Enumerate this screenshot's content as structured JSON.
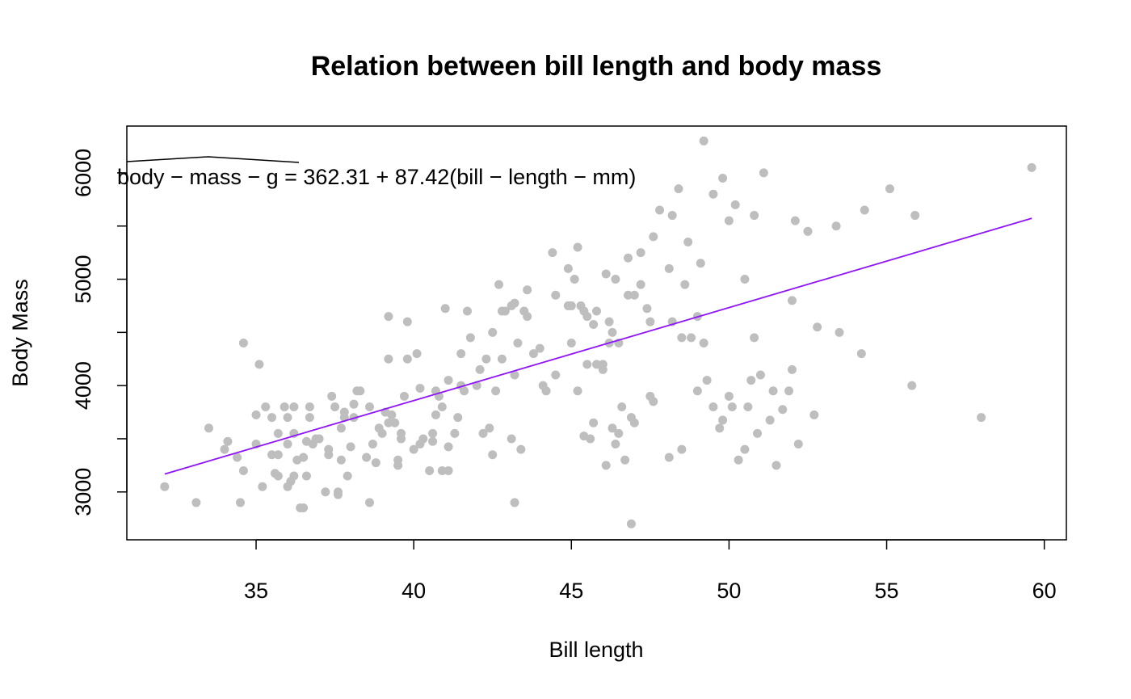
{
  "chart_data": {
    "type": "scatter",
    "title": "Relation between bill length and body mass",
    "xlabel": "Bill length",
    "ylabel": "Body Mass",
    "xlim": [
      30.9,
      60.7
    ],
    "ylim": [
      2550,
      6440
    ],
    "x_ticks": [
      35,
      40,
      45,
      50,
      55,
      60
    ],
    "y_ticks": [
      3000,
      4000,
      5000,
      6000
    ],
    "y_minor_ticks": [
      3500,
      4500,
      5500
    ],
    "grid": false,
    "equation": "body − mass − g = 362.31 + 87.42(bill − length − mm)",
    "fit_line": {
      "intercept": 362.31,
      "slope": 87.42,
      "x_range": [
        32.1,
        59.6
      ],
      "color": "#9013FE"
    },
    "point_color": "#BEBEBE",
    "points": [
      [
        32.1,
        3050
      ],
      [
        33.1,
        2900
      ],
      [
        33.5,
        3600
      ],
      [
        34.0,
        3400
      ],
      [
        34.1,
        3475
      ],
      [
        34.4,
        3325
      ],
      [
        34.5,
        2900
      ],
      [
        34.6,
        3200
      ],
      [
        34.6,
        4400
      ],
      [
        35.0,
        3450
      ],
      [
        35.0,
        3725
      ],
      [
        35.1,
        4200
      ],
      [
        35.2,
        3050
      ],
      [
        35.3,
        3800
      ],
      [
        35.5,
        3700
      ],
      [
        35.5,
        3350
      ],
      [
        35.6,
        3175
      ],
      [
        35.7,
        3150
      ],
      [
        35.7,
        3550
      ],
      [
        35.7,
        3350
      ],
      [
        35.9,
        3800
      ],
      [
        36.0,
        3050
      ],
      [
        36.0,
        3450
      ],
      [
        36.0,
        3700
      ],
      [
        36.1,
        3100
      ],
      [
        36.2,
        3150
      ],
      [
        36.2,
        3550
      ],
      [
        36.2,
        3800
      ],
      [
        36.3,
        3300
      ],
      [
        36.4,
        2850
      ],
      [
        36.5,
        2850
      ],
      [
        36.5,
        3325
      ],
      [
        36.6,
        3150
      ],
      [
        36.6,
        3475
      ],
      [
        36.7,
        3700
      ],
      [
        36.7,
        3800
      ],
      [
        36.8,
        3450
      ],
      [
        36.9,
        3500
      ],
      [
        37.0,
        3500
      ],
      [
        37.2,
        3000
      ],
      [
        37.3,
        3400
      ],
      [
        37.3,
        3350
      ],
      [
        37.4,
        3900
      ],
      [
        37.5,
        3800
      ],
      [
        37.6,
        2975
      ],
      [
        37.6,
        3000
      ],
      [
        37.7,
        3600
      ],
      [
        37.7,
        3300
      ],
      [
        37.8,
        3750
      ],
      [
        37.8,
        3700
      ],
      [
        37.9,
        3150
      ],
      [
        38.0,
        3425
      ],
      [
        38.1,
        3700
      ],
      [
        38.1,
        3825
      ],
      [
        38.2,
        3950
      ],
      [
        38.3,
        3950
      ],
      [
        38.5,
        3325
      ],
      [
        38.6,
        3800
      ],
      [
        38.6,
        2900
      ],
      [
        38.7,
        3450
      ],
      [
        38.8,
        3275
      ],
      [
        38.9,
        3600
      ],
      [
        39.0,
        3550
      ],
      [
        39.1,
        3750
      ],
      [
        39.2,
        3650
      ],
      [
        39.2,
        4650
      ],
      [
        39.2,
        4250
      ],
      [
        39.3,
        3725
      ],
      [
        39.4,
        3650
      ],
      [
        39.5,
        3250
      ],
      [
        39.5,
        3300
      ],
      [
        39.6,
        3500
      ],
      [
        39.6,
        3550
      ],
      [
        39.7,
        3900
      ],
      [
        39.8,
        4250
      ],
      [
        39.8,
        4600
      ],
      [
        40.0,
        3400
      ],
      [
        40.1,
        4300
      ],
      [
        40.2,
        3975
      ],
      [
        40.3,
        3500
      ],
      [
        40.5,
        3200
      ],
      [
        40.6,
        3475
      ],
      [
        40.6,
        3550
      ],
      [
        40.7,
        3725
      ],
      [
        40.8,
        3900
      ],
      [
        40.9,
        3200
      ],
      [
        41.0,
        4725
      ],
      [
        41.1,
        3200
      ],
      [
        41.1,
        4050
      ],
      [
        41.1,
        3425
      ],
      [
        41.3,
        3550
      ],
      [
        41.4,
        3700
      ],
      [
        41.5,
        4000
      ],
      [
        41.6,
        3950
      ],
      [
        41.7,
        4700
      ],
      [
        42.0,
        4000
      ],
      [
        42.2,
        3550
      ],
      [
        42.3,
        4250
      ],
      [
        42.5,
        4500
      ],
      [
        42.7,
        4950
      ],
      [
        42.8,
        4250
      ],
      [
        42.9,
        4700
      ],
      [
        43.1,
        3500
      ],
      [
        43.2,
        4775
      ],
      [
        43.2,
        2900
      ],
      [
        43.3,
        4400
      ],
      [
        43.5,
        4700
      ],
      [
        43.6,
        4900
      ],
      [
        43.8,
        4300
      ],
      [
        44.1,
        4000
      ],
      [
        44.4,
        5250
      ],
      [
        44.5,
        4850
      ],
      [
        44.9,
        5100
      ],
      [
        45.0,
        4750
      ],
      [
        45.1,
        5000
      ],
      [
        45.2,
        5300
      ],
      [
        45.3,
        4750
      ],
      [
        45.4,
        4700
      ],
      [
        45.5,
        4200
      ],
      [
        45.7,
        4575
      ],
      [
        45.8,
        4700
      ],
      [
        46.1,
        5050
      ],
      [
        46.2,
        4600
      ],
      [
        46.4,
        5000
      ],
      [
        46.5,
        4400
      ],
      [
        46.8,
        5200
      ],
      [
        47.0,
        4850
      ],
      [
        47.2,
        5250
      ],
      [
        47.4,
        4725
      ],
      [
        47.6,
        5400
      ],
      [
        47.8,
        5650
      ],
      [
        48.1,
        5100
      ],
      [
        48.2,
        5600
      ],
      [
        48.4,
        5850
      ],
      [
        48.7,
        5350
      ],
      [
        49.0,
        4650
      ],
      [
        49.1,
        5150
      ],
      [
        49.2,
        6300
      ],
      [
        49.5,
        5800
      ],
      [
        49.8,
        5950
      ],
      [
        50.0,
        5550
      ],
      [
        50.2,
        5700
      ],
      [
        50.5,
        5000
      ],
      [
        50.8,
        5600
      ],
      [
        51.1,
        6000
      ],
      [
        52.1,
        5550
      ],
      [
        52.5,
        5450
      ],
      [
        53.4,
        5500
      ],
      [
        54.3,
        5650
      ],
      [
        55.1,
        5850
      ],
      [
        55.9,
        5600
      ],
      [
        59.6,
        6050
      ],
      [
        45.2,
        3950
      ],
      [
        45.4,
        3525
      ],
      [
        45.7,
        3650
      ],
      [
        46.0,
        4200
      ],
      [
        46.1,
        3250
      ],
      [
        46.5,
        3550
      ],
      [
        46.7,
        3300
      ],
      [
        46.9,
        2700
      ],
      [
        47.5,
        3900
      ],
      [
        48.1,
        3325
      ],
      [
        48.5,
        3400
      ],
      [
        49.0,
        3950
      ],
      [
        49.5,
        3800
      ],
      [
        49.8,
        3675
      ],
      [
        50.0,
        3900
      ],
      [
        50.3,
        3300
      ],
      [
        50.5,
        3400
      ],
      [
        50.7,
        4050
      ],
      [
        50.9,
        3550
      ],
      [
        51.3,
        3675
      ],
      [
        51.5,
        3250
      ],
      [
        51.7,
        3775
      ],
      [
        52.0,
        4150
      ],
      [
        52.2,
        3450
      ],
      [
        52.7,
        3725
      ],
      [
        53.5,
        4500
      ],
      [
        54.2,
        4300
      ],
      [
        55.8,
        4000
      ],
      [
        58.0,
        3700
      ],
      [
        46.9,
        3700
      ],
      [
        47.6,
        3850
      ],
      [
        48.5,
        4450
      ],
      [
        49.3,
        4050
      ],
      [
        49.7,
        3600
      ],
      [
        50.6,
        3800
      ],
      [
        51.4,
        3950
      ],
      [
        52.0,
        4800
      ],
      [
        52.8,
        4550
      ],
      [
        46.4,
        3450
      ],
      [
        46.6,
        3800
      ],
      [
        47.0,
        3650
      ],
      [
        48.2,
        4600
      ],
      [
        48.8,
        4450
      ],
      [
        49.2,
        4400
      ],
      [
        50.1,
        3800
      ],
      [
        50.8,
        4450
      ],
      [
        51.0,
        4100
      ],
      [
        51.9,
        3950
      ],
      [
        44.0,
        4350
      ],
      [
        44.5,
        4100
      ],
      [
        45.0,
        4400
      ],
      [
        45.5,
        4650
      ],
      [
        46.0,
        4150
      ],
      [
        46.3,
        4500
      ],
      [
        46.8,
        4850
      ],
      [
        47.2,
        4950
      ],
      [
        47.5,
        4600
      ],
      [
        48.6,
        4950
      ],
      [
        42.4,
        3600
      ],
      [
        43.4,
        3400
      ],
      [
        44.2,
        3950
      ],
      [
        45.6,
        3500
      ],
      [
        46.3,
        3600
      ],
      [
        42.5,
        3350
      ],
      [
        43.2,
        4100
      ],
      [
        44.9,
        4750
      ],
      [
        45.8,
        4200
      ],
      [
        46.2,
        4400
      ],
      [
        40.7,
        3950
      ],
      [
        41.5,
        4300
      ],
      [
        42.1,
        4150
      ],
      [
        42.8,
        4700
      ],
      [
        43.6,
        4650
      ],
      [
        40.2,
        3450
      ],
      [
        40.9,
        3800
      ],
      [
        41.8,
        4450
      ],
      [
        42.6,
        3950
      ],
      [
        43.1,
        4750
      ]
    ]
  }
}
